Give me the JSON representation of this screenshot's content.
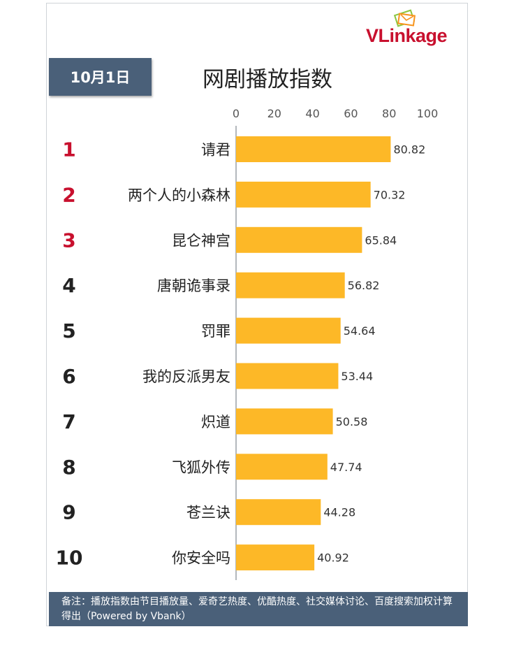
{
  "logo": {
    "text": "VLinkage"
  },
  "header": {
    "date": "10月1日",
    "title": "网剧播放指数"
  },
  "footer": {
    "note": "备注：播放指数由节目播放量、爱奇艺热度、优酷热度、社交媒体讨论、百度搜索加权计算得出（Powered by Vbank）"
  },
  "colors": {
    "bar": "#fdb827",
    "header_bg": "#4a6079",
    "rank_top": "#c8102e",
    "rank_other": "#222222",
    "logo_red": "#c8102e"
  },
  "chart_data": {
    "type": "bar",
    "orientation": "horizontal",
    "title": "网剧播放指数",
    "xlim": [
      0,
      100
    ],
    "ticks": [
      "0",
      "20",
      "40",
      "60",
      "80",
      "100"
    ],
    "tick_values": [
      0,
      20,
      40,
      60,
      80,
      100
    ],
    "axis_position": "top",
    "grid": false,
    "ranks": [
      "1",
      "2",
      "3",
      "4",
      "5",
      "6",
      "7",
      "8",
      "9",
      "10"
    ],
    "categories": [
      "请君",
      "两个人的小森林",
      "昆仑神宫",
      "唐朝诡事录",
      "罚罪",
      "我的反派男友",
      "炽道",
      "飞狐外传",
      "苍兰诀",
      "你安全吗"
    ],
    "values": [
      80.82,
      70.32,
      65.84,
      56.82,
      54.64,
      53.44,
      50.58,
      47.74,
      44.28,
      40.92
    ],
    "value_labels": [
      "80.82",
      "70.32",
      "65.84",
      "56.82",
      "54.64",
      "53.44",
      "50.58",
      "47.74",
      "44.28",
      "40.92"
    ]
  }
}
